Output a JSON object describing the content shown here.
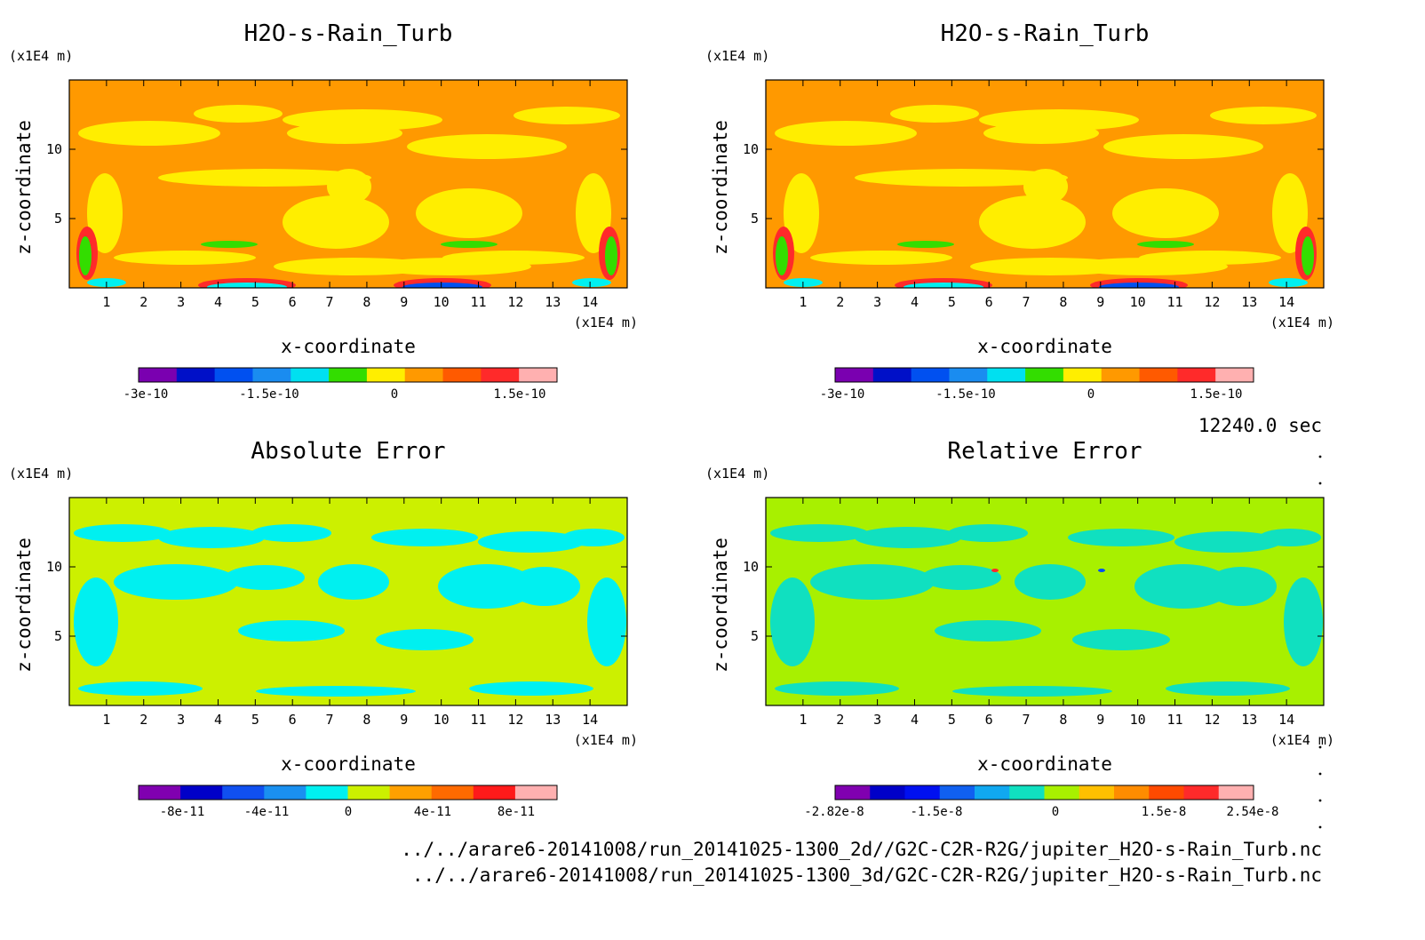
{
  "panels": [
    {
      "title": "H2O-s-Rain_Turb",
      "z_unit": "(x1E4 m)",
      "x_unit": "(x1E4 m)",
      "xlabel": "x-coordinate",
      "ylabel": "z-coordinate",
      "background": "#ff9900",
      "colorbar": {
        "colors": [
          "#7a00b0",
          "#0010c8",
          "#0050f0",
          "#1a8cf0",
          "#00e0f0",
          "#33dd00",
          "#ffee00",
          "#ff9900",
          "#ff5a00",
          "#ff2a2a",
          "#ffb0b0"
        ],
        "labels": [
          "-3e-10",
          "-1.5e-10",
          "0",
          "1.5e-10"
        ]
      }
    },
    {
      "title": "H2O-s-Rain_Turb",
      "z_unit": "(x1E4 m)",
      "x_unit": "(x1E4 m)",
      "xlabel": "x-coordinate",
      "ylabel": "z-coordinate",
      "background": "#ff9900",
      "colorbar": {
        "colors": [
          "#7a00b0",
          "#0010c8",
          "#0050f0",
          "#1a8cf0",
          "#00e0f0",
          "#33dd00",
          "#ffee00",
          "#ff9900",
          "#ff5a00",
          "#ff2a2a",
          "#ffb0b0"
        ],
        "labels": [
          "-3e-10",
          "-1.5e-10",
          "0",
          "1.5e-10"
        ]
      }
    },
    {
      "title": "Absolute Error",
      "z_unit": "(x1E4 m)",
      "x_unit": "(x1E4 m)",
      "xlabel": "x-coordinate",
      "ylabel": "z-coordinate",
      "background": "#ccf000",
      "colorbar": {
        "colors": [
          "#8000b0",
          "#0000c8",
          "#1050f0",
          "#1a90f0",
          "#00f0f0",
          "#ccf000",
          "#ffa000",
          "#ff6a00",
          "#ff1a1a",
          "#ffb0b0"
        ],
        "labels": [
          "-8e-11",
          "-4e-11",
          "0",
          "4e-11",
          "8e-11"
        ]
      }
    },
    {
      "title": "Relative Error",
      "z_unit": "(x1E4 m)",
      "x_unit": "(x1E4 m)",
      "xlabel": "x-coordinate",
      "ylabel": "z-coordinate",
      "background": "#a8f000",
      "colorbar": {
        "colors": [
          "#8000b0",
          "#0000c8",
          "#0010f0",
          "#1060f0",
          "#10a8f0",
          "#10e0c0",
          "#a8f000",
          "#ffc000",
          "#ff8c00",
          "#ff4a00",
          "#ff2a2a",
          "#ffb0b0"
        ],
        "labels": [
          "-2.82e-8",
          "-1.5e-8",
          "0",
          "1.5e-8",
          "2.54e-8"
        ]
      }
    }
  ],
  "time_label": "12240.0 sec",
  "file_paths": [
    "../../arare6-20141008/run_20141025-1300_2d//G2C-C2R-R2G/jupiter_H2O-s-Rain_Turb.nc",
    "../../arare6-20141008/run_20141025-1300_3d/G2C-C2R-R2G/jupiter_H2O-s-Rain_Turb.nc"
  ],
  "chart_data": [
    {
      "type": "heatmap",
      "title": "H2O-s-Rain_Turb",
      "xlabel": "x-coordinate",
      "ylabel": "z-coordinate",
      "x_ticks": [
        "1",
        "2",
        "3",
        "4",
        "5",
        "6",
        "7",
        "8",
        "9",
        "10",
        "11",
        "12",
        "13",
        "14"
      ],
      "y_ticks": [
        "5",
        "10"
      ],
      "xlim": [
        0,
        15
      ],
      "ylim": [
        0,
        15
      ],
      "colorbar_labels": [
        "-3e-10",
        "-1.5e-10",
        "0",
        "1.5e-10"
      ]
    },
    {
      "type": "heatmap",
      "title": "H2O-s-Rain_Turb",
      "xlabel": "x-coordinate",
      "ylabel": "z-coordinate",
      "x_ticks": [
        "1",
        "2",
        "3",
        "4",
        "5",
        "6",
        "7",
        "8",
        "9",
        "10",
        "11",
        "12",
        "13",
        "14"
      ],
      "y_ticks": [
        "5",
        "10"
      ],
      "xlim": [
        0,
        15
      ],
      "ylim": [
        0,
        15
      ],
      "colorbar_labels": [
        "-3e-10",
        "-1.5e-10",
        "0",
        "1.5e-10"
      ]
    },
    {
      "type": "heatmap",
      "title": "Absolute Error",
      "xlabel": "x-coordinate",
      "ylabel": "z-coordinate",
      "x_ticks": [
        "1",
        "2",
        "3",
        "4",
        "5",
        "6",
        "7",
        "8",
        "9",
        "10",
        "11",
        "12",
        "13",
        "14"
      ],
      "y_ticks": [
        "5",
        "10"
      ],
      "xlim": [
        0,
        15
      ],
      "ylim": [
        0,
        15
      ],
      "colorbar_labels": [
        "-8e-11",
        "-4e-11",
        "0",
        "4e-11",
        "8e-11"
      ]
    },
    {
      "type": "heatmap",
      "title": "Relative Error",
      "xlabel": "x-coordinate",
      "ylabel": "z-coordinate",
      "x_ticks": [
        "1",
        "2",
        "3",
        "4",
        "5",
        "6",
        "7",
        "8",
        "9",
        "10",
        "11",
        "12",
        "13",
        "14"
      ],
      "y_ticks": [
        "5",
        "10"
      ],
      "xlim": [
        0,
        15
      ],
      "ylim": [
        0,
        15
      ],
      "colorbar_labels": [
        "-2.82e-8",
        "-1.5e-8",
        "0",
        "1.5e-8",
        "2.54e-8"
      ]
    }
  ]
}
